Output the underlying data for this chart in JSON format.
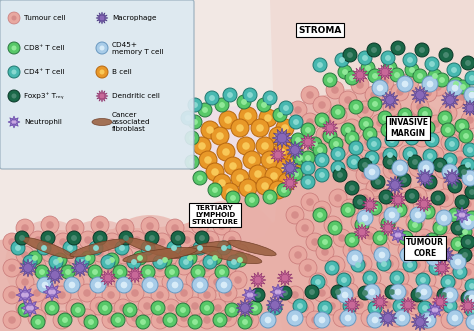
{
  "bg_color": "#f2e8e4",
  "stroma_color": "#f0d8d2",
  "tumour_color": "#e8b0a8",
  "tumour_dark": "#d89090",
  "legend_bg": "#ddeaf2",
  "cell_colors": {
    "tumour_fill": "#e8a8a0",
    "tumour_border": "#c87878",
    "tumour_nucleus": "#c87878",
    "cd8_fill": "#58c868",
    "cd8_border": "#2a7840",
    "cd8_inner": "#90e898",
    "cd4_fill": "#48b8b0",
    "cd4_border": "#207870",
    "cd4_inner": "#88d8d0",
    "foxp3_fill": "#1a6848",
    "foxp3_border": "#0a3828",
    "foxp3_inner": "#488870",
    "neutrophil_fill": "#9878c8",
    "neutrophil_border": "#5838a0",
    "cd45_fill": "#a8cce8",
    "cd45_border": "#6898c0",
    "cd45_inner": "#d8ecf8",
    "bcell_fill": "#e89828",
    "bcell_border": "#b86810",
    "bcell_inner": "#f8c858",
    "macrophage_fill": "#8868b8",
    "macrophage_border": "#483880",
    "dendritic_fill": "#c86898",
    "dendritic_border": "#883068",
    "fibroblast_fill": "#9a6040",
    "fibroblast_border": "#6a3820"
  },
  "labels": {
    "stroma": "STROMA",
    "invasive": "INVASIVE\nMARGIN",
    "tls": "TERTIARY\nLYMPHOID\nSTRUCTURE",
    "tumour_core": "TUMOUR\nCORE"
  },
  "legend_entries_left": [
    {
      "label": "Tumour cell",
      "type": "tumour"
    },
    {
      "label": "CD8⁺ T cell",
      "type": "cd8"
    },
    {
      "label": "CD4⁺ T cell",
      "type": "cd4"
    },
    {
      "label": "Foxp3⁺ Tᵣₑᵧ",
      "type": "foxp3"
    },
    {
      "label": "Neutrophil",
      "type": "neutrophil"
    }
  ],
  "legend_entries_right": [
    {
      "label": "Macrophage",
      "type": "macrophage"
    },
    {
      "label": "CD45+\nmemory T cell",
      "type": "cd45"
    },
    {
      "label": "B cell",
      "type": "bcell"
    },
    {
      "label": "Dendritic cell",
      "type": "dendritic"
    },
    {
      "label": "Cancer\nassociated\nfibroblast",
      "type": "fibroblast"
    }
  ]
}
